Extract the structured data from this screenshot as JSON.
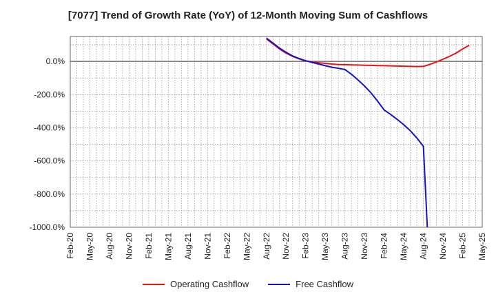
{
  "chart_data": {
    "type": "line",
    "title": "[7077]  Trend of Growth Rate (YoY) of 12-Month Moving Sum of Cashflows",
    "xlabel": "",
    "ylabel": "",
    "ylim": [
      -1000,
      150
    ],
    "y_ticks": [
      0,
      -200,
      -400,
      -600,
      -800,
      -1000
    ],
    "y_tick_labels": [
      "0.0%",
      "-200.0%",
      "-400.0%",
      "-600.0%",
      "-800.0%",
      "-1000.0%"
    ],
    "x_tick_labels": [
      "Feb-20",
      "May-20",
      "Aug-20",
      "Nov-20",
      "Feb-21",
      "May-21",
      "Aug-21",
      "Nov-21",
      "Feb-22",
      "May-22",
      "Aug-22",
      "Nov-22",
      "Feb-23",
      "May-23",
      "Aug-23",
      "Nov-23",
      "Feb-24",
      "May-24",
      "Aug-24",
      "Nov-24",
      "Feb-25",
      "May-25"
    ],
    "x_range_months": [
      0,
      63
    ],
    "grid": true,
    "legend_position": "bottom-center",
    "series": [
      {
        "name": "Operating Cashflow",
        "color": "#ee1111",
        "points": [
          [
            30,
            135
          ],
          [
            31,
            105
          ],
          [
            32,
            75
          ],
          [
            33,
            50
          ],
          [
            34,
            30
          ],
          [
            35,
            15
          ],
          [
            36,
            3
          ],
          [
            37,
            -3
          ],
          [
            38,
            -8
          ],
          [
            39,
            -12
          ],
          [
            40,
            -16
          ],
          [
            41,
            -19
          ],
          [
            42,
            -20
          ],
          [
            43,
            -21
          ],
          [
            44,
            -22
          ],
          [
            45,
            -23
          ],
          [
            46,
            -24
          ],
          [
            47,
            -25
          ],
          [
            48,
            -26
          ],
          [
            49,
            -27
          ],
          [
            50,
            -28
          ],
          [
            51,
            -29
          ],
          [
            52,
            -30
          ],
          [
            53,
            -31
          ],
          [
            54,
            -30
          ],
          [
            55,
            -18
          ],
          [
            56,
            -3
          ],
          [
            57,
            13
          ],
          [
            58,
            30
          ],
          [
            59,
            50
          ],
          [
            60,
            75
          ],
          [
            61,
            97
          ]
        ]
      },
      {
        "name": "Free Cashflow",
        "color": "#1111cc",
        "points": [
          [
            30,
            140
          ],
          [
            31,
            110
          ],
          [
            32,
            80
          ],
          [
            33,
            55
          ],
          [
            34,
            33
          ],
          [
            35,
            17
          ],
          [
            36,
            4
          ],
          [
            37,
            -6
          ],
          [
            38,
            -16
          ],
          [
            39,
            -26
          ],
          [
            40,
            -35
          ],
          [
            41,
            -42
          ],
          [
            42,
            -49
          ],
          [
            43,
            -78
          ],
          [
            44,
            -112
          ],
          [
            45,
            -148
          ],
          [
            46,
            -190
          ],
          [
            47,
            -240
          ],
          [
            48,
            -293
          ],
          [
            49,
            -320
          ],
          [
            50,
            -350
          ],
          [
            51,
            -382
          ],
          [
            52,
            -418
          ],
          [
            53,
            -462
          ],
          [
            54,
            -512
          ],
          [
            54.6,
            -1000
          ]
        ]
      }
    ]
  }
}
